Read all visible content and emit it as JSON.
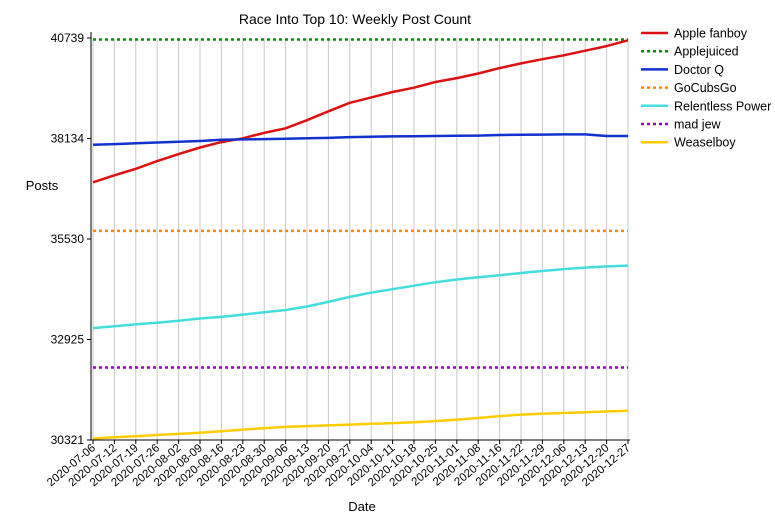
{
  "chart_data": {
    "type": "line",
    "title": "Race Into Top 10: Weekly Post Count",
    "xlabel": "Date",
    "ylabel": "Posts",
    "x": [
      "2020-07-06",
      "2020-07-12",
      "2020-07-19",
      "2020-07-26",
      "2020-08-02",
      "2020-08-09",
      "2020-08-16",
      "2020-08-23",
      "2020-08-30",
      "2020-09-06",
      "2020-09-13",
      "2020-09-20",
      "2020-09-27",
      "2020-10-04",
      "2020-10-11",
      "2020-10-18",
      "2020-10-25",
      "2020-11-01",
      "2020-11-08",
      "2020-11-16",
      "2020-11-22",
      "2020-11-29",
      "2020-12-06",
      "2020-12-13",
      "2020-12-20",
      "2020-12-27"
    ],
    "yticks": [
      30321,
      32925,
      35530,
      38134,
      40739
    ],
    "ylim": [
      30321,
      40739
    ],
    "grid": "vertical",
    "legend": "right",
    "series": [
      {
        "name": "Apple fanboy",
        "color": "#dd1111",
        "style": "solid",
        "values": [
          37000,
          37180,
          37350,
          37550,
          37730,
          37900,
          38040,
          38140,
          38280,
          38400,
          38610,
          38840,
          39060,
          39200,
          39340,
          39450,
          39600,
          39700,
          39820,
          39960,
          40080,
          40190,
          40290,
          40410,
          40530,
          40680
        ]
      },
      {
        "name": "Applejuiced",
        "color": "#118811",
        "style": "dashed",
        "values": [
          40700,
          40700,
          40700,
          40700,
          40700,
          40700,
          40700,
          40700,
          40700,
          40700,
          40700,
          40700,
          40700,
          40700,
          40700,
          40700,
          40700,
          40700,
          40700,
          40700,
          40700,
          40700,
          40700,
          40700,
          40700,
          40700
        ]
      },
      {
        "name": "Doctor Q",
        "color": "#1133cc",
        "style": "solid",
        "values": [
          37970,
          37990,
          38010,
          38030,
          38050,
          38070,
          38100,
          38110,
          38120,
          38130,
          38140,
          38150,
          38170,
          38180,
          38190,
          38195,
          38200,
          38205,
          38210,
          38225,
          38230,
          38235,
          38240,
          38240,
          38200,
          38200
        ]
      },
      {
        "name": "GoCubsGo",
        "color": "#ff8800",
        "style": "dashed",
        "values": [
          35740,
          35740,
          35740,
          35740,
          35740,
          35740,
          35740,
          35740,
          35740,
          35740,
          35740,
          35740,
          35740,
          35740,
          35740,
          35740,
          35740,
          35740,
          35740,
          35740,
          35740,
          35740,
          35740,
          35740,
          35740,
          35740
        ]
      },
      {
        "name": "Relentless Power",
        "color": "#44dddd",
        "style": "solid",
        "values": [
          33220,
          33270,
          33320,
          33360,
          33410,
          33470,
          33510,
          33570,
          33630,
          33690,
          33780,
          33900,
          34030,
          34140,
          34230,
          34320,
          34410,
          34480,
          34540,
          34590,
          34650,
          34700,
          34750,
          34790,
          34820,
          34840
        ]
      },
      {
        "name": "mad jew",
        "color": "#9900cc",
        "style": "dashed",
        "values": [
          32200,
          32200,
          32200,
          32200,
          32200,
          32200,
          32200,
          32200,
          32200,
          32200,
          32200,
          32200,
          32200,
          32200,
          32200,
          32200,
          32200,
          32200,
          32200,
          32200,
          32200,
          32200,
          32200,
          32200,
          32200,
          32200
        ]
      },
      {
        "name": "Weaselboy",
        "color": "#ffcc00",
        "style": "solid",
        "values": [
          30360,
          30390,
          30420,
          30450,
          30480,
          30510,
          30550,
          30590,
          30630,
          30660,
          30680,
          30700,
          30720,
          30740,
          30760,
          30780,
          30810,
          30850,
          30890,
          30940,
          30980,
          31000,
          31020,
          31040,
          31060,
          31080
        ]
      }
    ]
  }
}
